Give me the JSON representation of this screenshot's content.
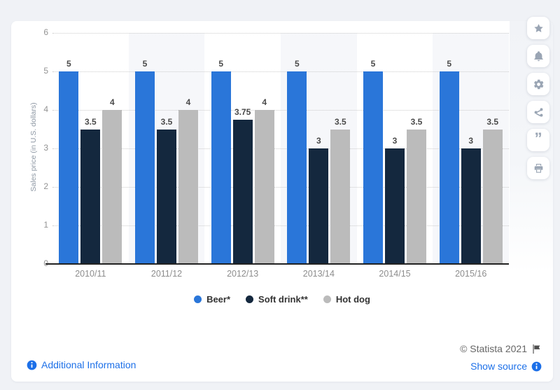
{
  "chart_data": {
    "type": "bar",
    "categories": [
      "2010/11",
      "2011/12",
      "2012/13",
      "2013/14",
      "2014/15",
      "2015/16"
    ],
    "series": [
      {
        "name": "Beer*",
        "color": "#2a76d9",
        "values": [
          5,
          5,
          5,
          5,
          5,
          5
        ]
      },
      {
        "name": "Soft drink**",
        "color": "#14283e",
        "values": [
          3.5,
          3.5,
          3.75,
          3,
          3,
          3
        ]
      },
      {
        "name": "Hot dog",
        "color": "#bbbbbb",
        "values": [
          4,
          4,
          4,
          3.5,
          3.5,
          3.5
        ]
      }
    ],
    "ylabel": "Sales price (in U.S. dollars)",
    "ylim": [
      0,
      6
    ],
    "yticks": [
      0,
      1,
      2,
      3,
      4,
      5,
      6
    ],
    "grid": "horizontal dotted",
    "legend_position": "bottom",
    "plot_band_color": "#f6f7fa",
    "banded_category_indexes": [
      1,
      3,
      5
    ],
    "data_labels": "shown above each bar"
  },
  "toolbar": {
    "icons": [
      "star-icon",
      "bell-icon",
      "gear-icon",
      "share-icon",
      "quote-icon",
      "print-icon"
    ]
  },
  "footer": {
    "additional_information": "Additional Information",
    "copyright": "© Statista 2021",
    "show_source": "Show source"
  },
  "colors": {
    "link": "#1d70e8",
    "axis_text": "#8d8d8d",
    "data_label": "#4a4a4a",
    "band": "#f6f7fa",
    "page_background": "#f0f2f6",
    "toolbar_icon": "#9aa5b4"
  }
}
